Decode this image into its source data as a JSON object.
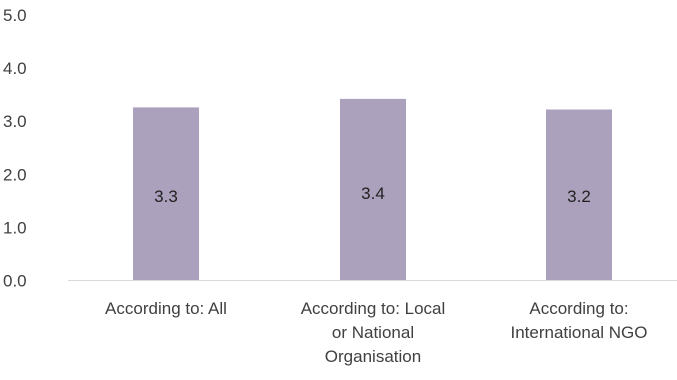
{
  "chart_data": {
    "type": "bar",
    "categories": [
      [
        "According to: All"
      ],
      [
        "According to: Local",
        "or National",
        "Organisation"
      ],
      [
        "According to:",
        "International NGO"
      ]
    ],
    "values": [
      3.26,
      3.42,
      3.22
    ],
    "data_labels": [
      "3.3",
      "3.4",
      "3.2"
    ],
    "ylim": [
      0,
      5
    ],
    "yticks": [
      "0.0",
      "1.0",
      "2.0",
      "3.0",
      "4.0",
      "5.0"
    ],
    "ytick_values": [
      0,
      1,
      2,
      3,
      4,
      5
    ],
    "grid": false,
    "legend": "none",
    "bar_color": "#ABA1BC",
    "axis_color": "#D9D9D9"
  }
}
